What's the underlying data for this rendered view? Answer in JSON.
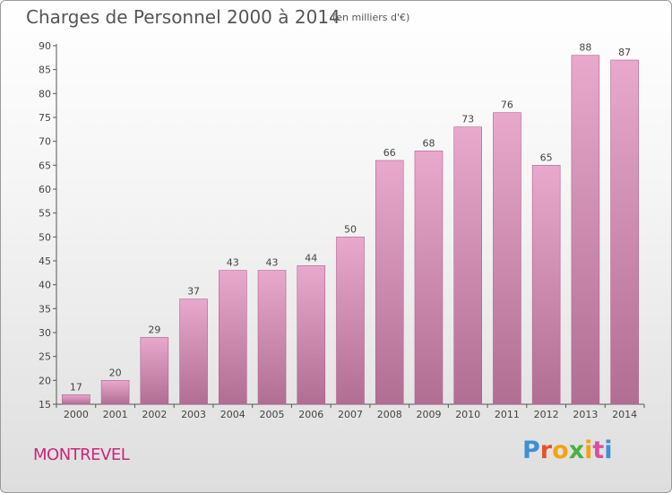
{
  "header": {
    "title": "Charges de Personnel 2000 à 2014",
    "subtitle": "(en milliers d'€)"
  },
  "footer": {
    "commune": "MONTREVEL",
    "logo_letters": [
      "P",
      "r",
      "o",
      "x",
      "i",
      "t",
      "i"
    ]
  },
  "colors": {
    "bar_top": "#e8a9cc",
    "bar_bottom": "#b06e92",
    "commune": "#c8287a",
    "logo": [
      "#3d8fd6",
      "#e2542a",
      "#f2a314",
      "#4ab23e",
      "#f2a314",
      "#d94fa0",
      "#3d8fd6"
    ]
  },
  "chart_data": {
    "type": "bar",
    "title": "Charges de Personnel 2000 à 2014",
    "subtitle": "(en milliers d'€)",
    "categories": [
      "2000",
      "2001",
      "2002",
      "2003",
      "2004",
      "2005",
      "2006",
      "2007",
      "2008",
      "2009",
      "2010",
      "2011",
      "2012",
      "2013",
      "2014"
    ],
    "values": [
      17,
      20,
      29,
      37,
      43,
      43,
      44,
      50,
      66,
      68,
      73,
      76,
      65,
      88,
      87
    ],
    "ylim": [
      15,
      90
    ],
    "yticks": [
      15,
      20,
      25,
      30,
      35,
      40,
      45,
      50,
      55,
      60,
      65,
      70,
      75,
      80,
      85,
      90
    ],
    "grid": false,
    "legend": "none"
  }
}
